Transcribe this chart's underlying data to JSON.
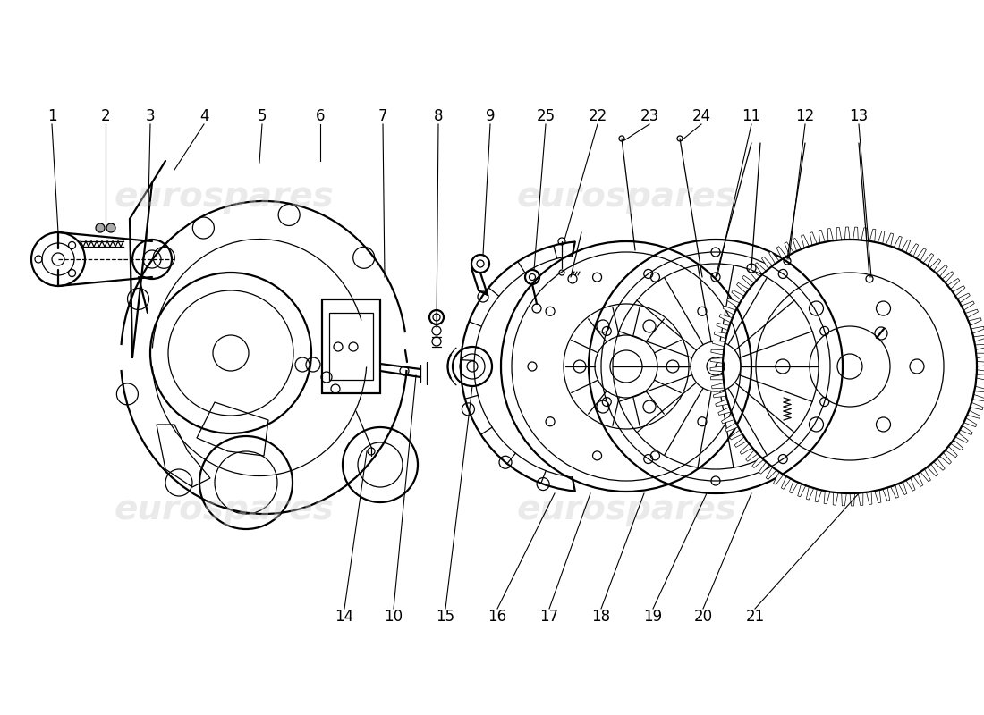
{
  "bg_color": "#ffffff",
  "line_color": "#000000",
  "lw_main": 1.6,
  "lw_thin": 0.9,
  "lw_med": 1.2,
  "label_fontsize": 12,
  "watermark_color": "#cccccc",
  "watermark_alpha": 0.4,
  "top_labels": [
    [
      "1",
      58,
      670
    ],
    [
      "2",
      118,
      670
    ],
    [
      "3",
      168,
      670
    ],
    [
      "4",
      228,
      670
    ],
    [
      "5",
      293,
      670
    ],
    [
      "6",
      358,
      670
    ],
    [
      "7",
      428,
      670
    ],
    [
      "8",
      490,
      670
    ],
    [
      "9",
      548,
      670
    ],
    [
      "25",
      610,
      670
    ],
    [
      "22",
      668,
      670
    ],
    [
      "23",
      726,
      670
    ],
    [
      "24",
      784,
      670
    ],
    [
      "11",
      840,
      670
    ],
    [
      "12",
      900,
      670
    ],
    [
      "13",
      960,
      670
    ]
  ],
  "bottom_labels": [
    [
      "14",
      385,
      110
    ],
    [
      "10",
      440,
      110
    ],
    [
      "15",
      498,
      110
    ],
    [
      "16",
      556,
      110
    ],
    [
      "17",
      614,
      110
    ],
    [
      "18",
      672,
      110
    ],
    [
      "19",
      730,
      110
    ],
    [
      "20",
      786,
      110
    ],
    [
      "21",
      844,
      110
    ]
  ]
}
